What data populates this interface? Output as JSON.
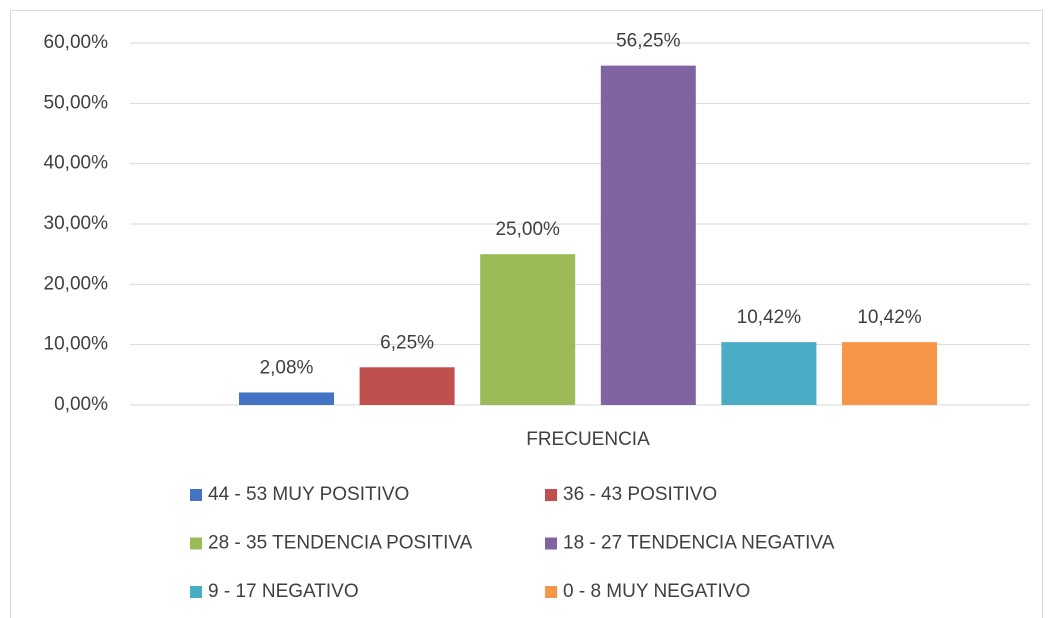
{
  "chart_data": {
    "type": "bar",
    "categories": [
      "FRECUENCIA"
    ],
    "series": [
      {
        "name": "44 - 53 MUY POSITIVO",
        "color": "#4472c4",
        "values": [
          2.08
        ],
        "value_labels": [
          "2,08%"
        ]
      },
      {
        "name": "36 - 43 POSITIVO",
        "color": "#c0504d",
        "values": [
          6.25
        ],
        "value_labels": [
          "6,25%"
        ]
      },
      {
        "name": "28 - 35 TENDENCIA POSITIVA",
        "color": "#9bbb59",
        "values": [
          25
        ],
        "value_labels": [
          "25,00%"
        ]
      },
      {
        "name": "18 - 27 TENDENCIA NEGATIVA",
        "color": "#8064a2",
        "values": [
          56.25
        ],
        "value_labels": [
          "56,25%"
        ]
      },
      {
        "name": "9 - 17 NEGATIVO",
        "color": "#4bacc6",
        "values": [
          10.42
        ],
        "value_labels": [
          "10,42%"
        ]
      },
      {
        "name": "0 - 8 MUY NEGATIVO",
        "color": "#f79646",
        "values": [
          10.42
        ],
        "value_labels": [
          "10,42%"
        ]
      }
    ],
    "ylim": [
      0,
      60
    ],
    "yticks": [
      {
        "value": 0,
        "label": "0,00%"
      },
      {
        "value": 10,
        "label": "10,00%"
      },
      {
        "value": 20,
        "label": "20,00%"
      },
      {
        "value": 30,
        "label": "30,00%"
      },
      {
        "value": 40,
        "label": "40,00%"
      },
      {
        "value": 50,
        "label": "50,00%"
      },
      {
        "value": 60,
        "label": "60,00%"
      }
    ],
    "grid": true,
    "legend": "bottom"
  }
}
